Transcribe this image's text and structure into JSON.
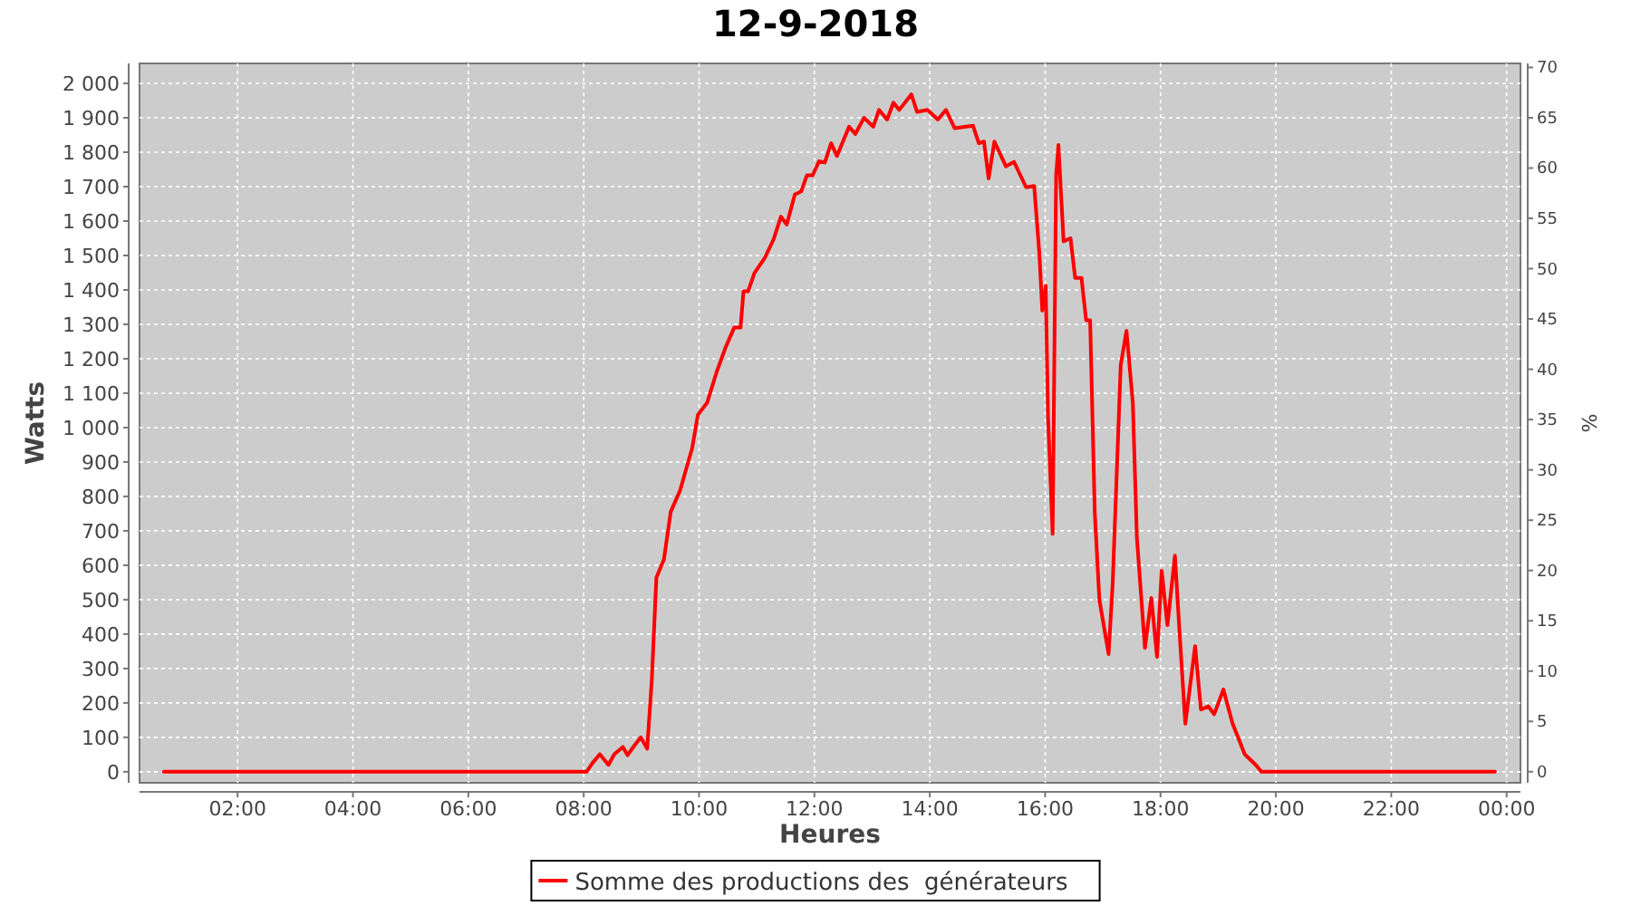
{
  "chart_data": {
    "type": "line",
    "title": "12-9-2018",
    "xlabel": "Heures",
    "ylabel": "Watts",
    "y2label": "%",
    "xlim": [
      0.3,
      24.24
    ],
    "xticks": [
      {
        "value": 2,
        "label": "02:00"
      },
      {
        "value": 4,
        "label": "04:00"
      },
      {
        "value": 6,
        "label": "06:00"
      },
      {
        "value": 8,
        "label": "08:00"
      },
      {
        "value": 10,
        "label": "10:00"
      },
      {
        "value": 12,
        "label": "12:00"
      },
      {
        "value": 14,
        "label": "14:00"
      },
      {
        "value": 16,
        "label": "16:00"
      },
      {
        "value": 18,
        "label": "18:00"
      },
      {
        "value": 20,
        "label": "20:00"
      },
      {
        "value": 22,
        "label": "22:00"
      },
      {
        "value": 24,
        "label": "00:00"
      }
    ],
    "ylim": [
      -32,
      2058
    ],
    "yticks": [
      0,
      100,
      200,
      300,
      400,
      500,
      600,
      700,
      800,
      900,
      {
        "value": 1000,
        "label": "1 000"
      },
      {
        "value": 1100,
        "label": "1 100"
      },
      {
        "value": 1200,
        "label": "1 200"
      },
      {
        "value": 1300,
        "label": "1 300"
      },
      {
        "value": 1400,
        "label": "1 400"
      },
      {
        "value": 1500,
        "label": "1 500"
      },
      {
        "value": 1600,
        "label": "1 600"
      },
      {
        "value": 1700,
        "label": "1 700"
      },
      {
        "value": 1800,
        "label": "1 800"
      },
      {
        "value": 1900,
        "label": "1 900"
      },
      {
        "value": 2000,
        "label": "2 000"
      }
    ],
    "y2lim": [
      -1.1,
      70.4
    ],
    "y2ticks": [
      0,
      5,
      10,
      15,
      20,
      25,
      30,
      35,
      40,
      45,
      50,
      55,
      60,
      65,
      70
    ],
    "grid": true,
    "legend": "bottom",
    "marker": "none",
    "line_style": "solid",
    "series": [
      {
        "name": "Somme des productions des  générateurs",
        "color": "#ff0000",
        "x": [
          0.72,
          7.9,
          8.05,
          8.15,
          8.28,
          8.43,
          8.53,
          8.68,
          8.76,
          8.86,
          8.99,
          9.1,
          9.18,
          9.26,
          9.39,
          9.51,
          9.67,
          9.88,
          9.98,
          10.14,
          10.3,
          10.46,
          10.61,
          10.72,
          10.77,
          10.85,
          10.96,
          11.14,
          11.29,
          11.42,
          11.52,
          11.66,
          11.77,
          11.87,
          11.97,
          12.08,
          12.18,
          12.29,
          12.39,
          12.6,
          12.71,
          12.86,
          13.02,
          13.12,
          13.26,
          13.37,
          13.47,
          13.57,
          13.68,
          13.78,
          13.96,
          14.14,
          14.28,
          14.43,
          14.75,
          14.85,
          14.94,
          15.02,
          15.12,
          15.32,
          15.46,
          15.67,
          15.81,
          15.9,
          15.95,
          16.01,
          16.05,
          16.13,
          16.19,
          16.23,
          16.32,
          16.44,
          16.52,
          16.63,
          16.71,
          16.78,
          16.86,
          16.94,
          17.1,
          17.17,
          17.31,
          17.41,
          17.52,
          17.59,
          17.73,
          17.84,
          17.94,
          18.02,
          18.12,
          18.25,
          18.33,
          18.43,
          18.6,
          18.7,
          18.83,
          18.93,
          19.09,
          19.25,
          19.46,
          19.65,
          19.75,
          23.8
        ],
        "values": [
          0,
          0,
          0,
          25,
          51,
          20,
          51,
          72,
          48,
          72,
          100,
          67,
          264,
          564,
          616,
          756,
          817,
          940,
          1037,
          1072,
          1159,
          1233,
          1291,
          1291,
          1396,
          1396,
          1449,
          1493,
          1546,
          1613,
          1590,
          1677,
          1686,
          1733,
          1733,
          1774,
          1770,
          1826,
          1789,
          1874,
          1853,
          1900,
          1874,
          1923,
          1895,
          1944,
          1923,
          1944,
          1968,
          1917,
          1923,
          1895,
          1923,
          1870,
          1877,
          1826,
          1831,
          1724,
          1831,
          1759,
          1772,
          1698,
          1702,
          1505,
          1340,
          1412,
          1032,
          691,
          1733,
          1821,
          1541,
          1550,
          1435,
          1435,
          1312,
          1312,
          754,
          500,
          342,
          544,
          1181,
          1281,
          1072,
          681,
          360,
          505,
          334,
          584,
          426,
          628,
          405,
          140,
          365,
          181,
          190,
          167,
          239,
          140,
          51,
          20,
          0,
          0
        ]
      }
    ]
  }
}
